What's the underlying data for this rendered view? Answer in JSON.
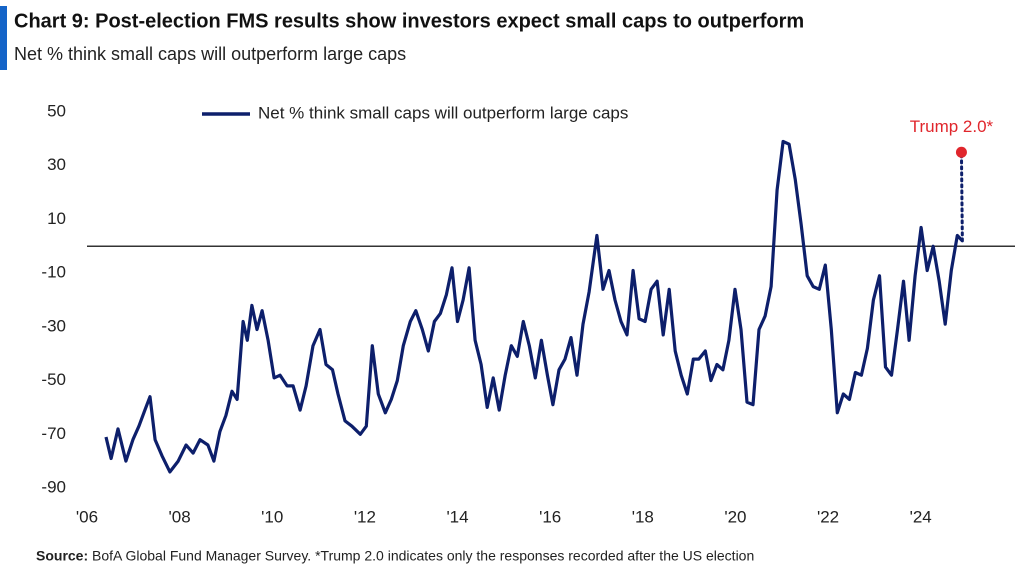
{
  "chart_data": {
    "type": "line",
    "title": "Chart 9: Post-election FMS results show investors expect small caps to outperform",
    "subtitle": "Net % think small caps will outperform large caps",
    "source_label": "Source:",
    "source": "BofA Global Fund Manager Survey. *Trump 2.0 indicates only the responses recorded after the US election",
    "x": [
      2006.41,
      2006.52,
      2006.67,
      2006.84,
      2006.99,
      2007.12,
      2007.25,
      2007.36,
      2007.47,
      2007.62,
      2007.79,
      2007.97,
      2008.14,
      2008.29,
      2008.44,
      2008.61,
      2008.74,
      2008.87,
      2009.0,
      2009.13,
      2009.24,
      2009.37,
      2009.46,
      2009.56,
      2009.67,
      2009.78,
      2009.91,
      2010.04,
      2010.17,
      2010.32,
      2010.45,
      2010.6,
      2010.73,
      2010.88,
      2011.03,
      2011.16,
      2011.3,
      2011.42,
      2011.57,
      2011.72,
      2011.9,
      2012.03,
      2012.16,
      2012.29,
      2012.44,
      2012.57,
      2012.7,
      2012.83,
      2012.98,
      2013.1,
      2013.24,
      2013.37,
      2013.5,
      2013.63,
      2013.76,
      2013.88,
      2014.0,
      2014.12,
      2014.25,
      2014.38,
      2014.51,
      2014.64,
      2014.77,
      2014.9,
      2015.03,
      2015.16,
      2015.29,
      2015.42,
      2015.55,
      2015.68,
      2015.81,
      2015.94,
      2016.06,
      2016.19,
      2016.32,
      2016.45,
      2016.58,
      2016.71,
      2016.84,
      2017.01,
      2017.14,
      2017.27,
      2017.4,
      2017.53,
      2017.66,
      2017.79,
      2017.92,
      2018.05,
      2018.18,
      2018.31,
      2018.44,
      2018.57,
      2018.7,
      2018.83,
      2018.96,
      2019.09,
      2019.21,
      2019.35,
      2019.47,
      2019.6,
      2019.73,
      2019.86,
      2019.99,
      2020.12,
      2020.25,
      2020.38,
      2020.51,
      2020.64,
      2020.77,
      2020.9,
      2021.03,
      2021.16,
      2021.29,
      2021.42,
      2021.55,
      2021.68,
      2021.81,
      2021.94,
      2022.07,
      2022.2,
      2022.33,
      2022.46,
      2022.59,
      2022.72,
      2022.85,
      2022.98,
      2023.11,
      2023.24,
      2023.37,
      2023.5,
      2023.63,
      2023.75,
      2023.88,
      2024.01,
      2024.14,
      2024.27,
      2024.4,
      2024.53,
      2024.66,
      2024.79,
      2024.9
    ],
    "series": [
      {
        "name": "Net % think small caps will outperform large caps",
        "color": "#0d1f6b",
        "values": [
          -71,
          -79,
          -68,
          -80,
          -72,
          -67,
          -61,
          -56,
          -72,
          -78,
          -84,
          -80,
          -74,
          -77,
          -72,
          -74,
          -80,
          -69,
          -63,
          -54,
          -57,
          -28,
          -35,
          -22,
          -31,
          -24,
          -35,
          -49,
          -48,
          -52,
          -52,
          -61,
          -52,
          -37,
          -31,
          -44,
          -46,
          -55,
          -65,
          -67,
          -70,
          -67,
          -37,
          -55,
          -62,
          -57,
          -50,
          -37,
          -28,
          -24,
          -31,
          -39,
          -28,
          -25,
          -18,
          -8,
          -28,
          -20,
          -8,
          -35,
          -44,
          -60,
          -49,
          -61,
          -48,
          -37,
          -41,
          -28,
          -37,
          -49,
          -35,
          -48,
          -59,
          -46,
          -42,
          -34,
          -48,
          -29,
          -17,
          4,
          -16,
          -9,
          -20,
          -28,
          -33,
          -9,
          -27,
          -28,
          -16,
          -13,
          -33,
          -16,
          -39,
          -48,
          -55,
          -42,
          -42,
          -39,
          -50,
          -44,
          -46,
          -35,
          -16,
          -31,
          -58,
          -59,
          -31,
          -26,
          -15,
          21,
          39,
          38,
          25,
          8,
          -11,
          -15,
          -16,
          -7,
          -31,
          -62,
          -55,
          -57,
          -47,
          -48,
          -38,
          -20,
          -11,
          -45,
          -48,
          -31,
          -13,
          -35,
          -11,
          7,
          -9,
          0,
          -13,
          -29,
          -9,
          4,
          2
        ]
      }
    ],
    "annotation": {
      "label": "Trump 2.0*",
      "x": 2024.88,
      "value": 35,
      "color": "#e0262c"
    },
    "reference_line": 0,
    "xlim": [
      2006,
      2025
    ],
    "xticks": [
      {
        "value": 2006,
        "label": "'06"
      },
      {
        "value": 2008,
        "label": "'08"
      },
      {
        "value": 2010,
        "label": "'10"
      },
      {
        "value": 2012,
        "label": "'12"
      },
      {
        "value": 2014,
        "label": "'14"
      },
      {
        "value": 2016,
        "label": "'16"
      },
      {
        "value": 2018,
        "label": "'18"
      },
      {
        "value": 2020,
        "label": "'20"
      },
      {
        "value": 2022,
        "label": "'22"
      },
      {
        "value": 2024,
        "label": "'24"
      }
    ],
    "ylim": [
      -90,
      50
    ],
    "yticks": [
      50,
      30,
      10,
      -10,
      -30,
      -50,
      -70,
      -90
    ],
    "grid": false
  }
}
